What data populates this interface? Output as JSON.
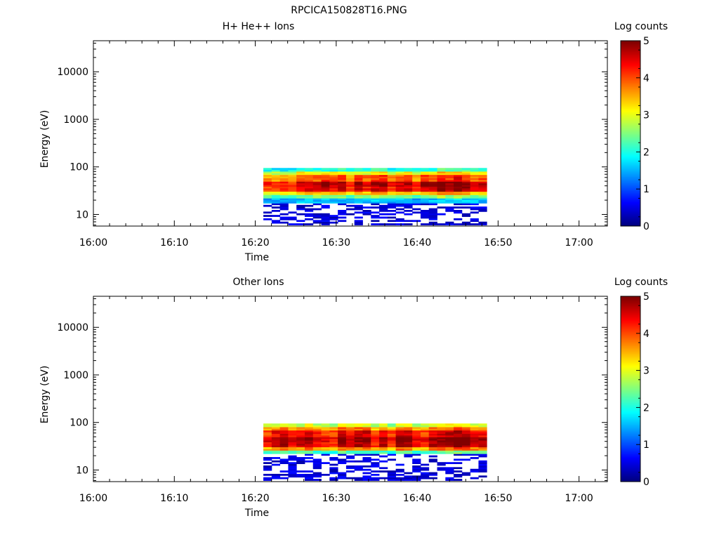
{
  "page_title": "RPCICA150828T16.PNG",
  "chart_data": [
    {
      "type": "heatmap",
      "title": "H+ He++ Ions",
      "xlabel": "Time",
      "ylabel": "Energy (eV)",
      "x_ticks": [
        "16:00",
        "16:10",
        "16:20",
        "16:30",
        "16:40",
        "16:50",
        "17:00"
      ],
      "xlim_minutes": [
        0,
        63.5
      ],
      "y_scale": "log",
      "ylim": [
        5.7,
        45000
      ],
      "y_ticks": [
        10,
        100,
        1000,
        10000
      ],
      "y_tick_labels": [
        "10",
        "100",
        "1000",
        "10000"
      ],
      "colorbar": {
        "label": "Log counts",
        "range": [
          0,
          5
        ],
        "ticks": [
          "0",
          "1",
          "2",
          "3",
          "4",
          "5"
        ]
      },
      "data_extent": {
        "t_start_min": 21,
        "t_end_min": 48.6,
        "e_min_eV": 6,
        "e_max_eV": 95
      },
      "energy_profile": [
        {
          "eV": 93,
          "log_counts": 2.0
        },
        {
          "eV": 75,
          "log_counts": 3.0
        },
        {
          "eV": 58,
          "log_counts": 3.8
        },
        {
          "eV": 45,
          "log_counts": 4.5
        },
        {
          "eV": 35,
          "log_counts": 4.3
        },
        {
          "eV": 28,
          "log_counts": 3.3
        },
        {
          "eV": 24,
          "log_counts": 2.4
        },
        {
          "eV": 20,
          "log_counts": 1.5
        },
        {
          "eV": 16,
          "log_counts": 0.9
        },
        {
          "eV": 12,
          "log_counts": 0.6
        },
        {
          "eV": 9,
          "log_counts": 0.5
        },
        {
          "eV": 7,
          "log_counts": 0.4
        }
      ]
    },
    {
      "type": "heatmap",
      "title": "Other Ions",
      "xlabel": "Time",
      "ylabel": "Energy (eV)",
      "x_ticks": [
        "16:00",
        "16:10",
        "16:20",
        "16:30",
        "16:40",
        "16:50",
        "17:00"
      ],
      "xlim_minutes": [
        0,
        63.5
      ],
      "y_scale": "log",
      "ylim": [
        5.7,
        45000
      ],
      "y_ticks": [
        10,
        100,
        1000,
        10000
      ],
      "y_tick_labels": [
        "10",
        "100",
        "1000",
        "10000"
      ],
      "colorbar": {
        "label": "Log counts",
        "range": [
          0,
          5
        ],
        "ticks": [
          "0",
          "1",
          "2",
          "3",
          "4",
          "5"
        ]
      },
      "data_extent": {
        "t_start_min": 21,
        "t_end_min": 48.6,
        "e_min_eV": 6,
        "e_max_eV": 95
      },
      "energy_profile": [
        {
          "eV": 93,
          "log_counts": 2.8
        },
        {
          "eV": 75,
          "log_counts": 3.6
        },
        {
          "eV": 58,
          "log_counts": 4.3
        },
        {
          "eV": 45,
          "log_counts": 4.7
        },
        {
          "eV": 35,
          "log_counts": 4.5
        },
        {
          "eV": 28,
          "log_counts": 3.6
        },
        {
          "eV": 24,
          "log_counts": 2.2
        },
        {
          "eV": 20,
          "log_counts": 1.0
        },
        {
          "eV": 16,
          "log_counts": 0.6
        },
        {
          "eV": 12,
          "log_counts": 0.5
        },
        {
          "eV": 9,
          "log_counts": 0.4
        },
        {
          "eV": 7,
          "log_counts": 0.35
        }
      ]
    }
  ]
}
